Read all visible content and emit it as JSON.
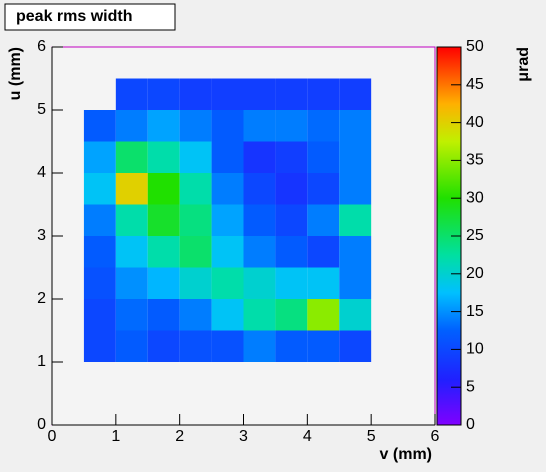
{
  "chart_data": {
    "type": "heatmap",
    "title": "peak rms width",
    "x_label": "v (mm)",
    "y_label": "u (mm)",
    "z_label": "μrad",
    "x": [
      0.5,
      1,
      1.5,
      2,
      2.5,
      3,
      3.5,
      4,
      4.5,
      5
    ],
    "y": [
      1,
      1.5,
      2,
      2.5,
      3,
      3.5,
      4,
      4.5,
      5,
      5.5
    ],
    "z": [
      [
        10,
        12,
        10,
        11,
        11,
        14,
        12,
        12,
        10
      ],
      [
        10,
        13,
        12,
        14,
        18,
        22,
        24,
        35,
        20
      ],
      [
        11,
        15,
        17,
        20,
        22,
        20,
        18,
        18,
        14
      ],
      [
        12,
        18,
        22,
        25,
        18,
        14,
        12,
        10,
        14
      ],
      [
        14,
        22,
        28,
        24,
        16,
        12,
        10,
        14,
        22
      ],
      [
        18,
        40,
        30,
        22,
        14,
        10,
        8,
        10,
        14
      ],
      [
        16,
        25,
        22,
        18,
        12,
        8,
        9,
        12,
        14
      ],
      [
        12,
        14,
        16,
        14,
        12,
        14,
        14,
        13,
        14
      ],
      [
        null,
        10,
        10,
        9,
        9,
        9,
        9,
        9,
        9
      ]
    ],
    "xlim": [
      0,
      6
    ],
    "xticks": [
      0,
      1,
      2,
      3,
      4,
      5,
      6
    ],
    "ylim": [
      0,
      6
    ],
    "yticks": [
      0,
      1,
      2,
      3,
      4,
      5,
      6
    ],
    "zlim": [
      0,
      50
    ],
    "zticks": [
      0,
      5,
      10,
      15,
      20,
      25,
      30,
      35,
      40,
      45,
      50
    ]
  }
}
